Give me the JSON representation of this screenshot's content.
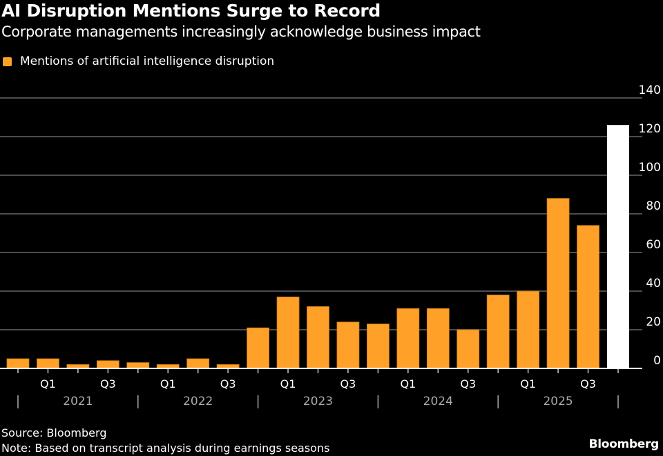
{
  "title": "AI Disruption Mentions Surge to Record",
  "subtitle": "Corporate managements increasingly acknowledge business impact",
  "source": "Source: Bloomberg",
  "note": "Note: Based on transcript analysis during earnings seasons",
  "logo": "Bloomberg",
  "colors": {
    "bar": "#ffa028",
    "highlight": "#ffffff",
    "grid": "#4d4d4d",
    "background": "#000000"
  },
  "chart_data": {
    "type": "bar",
    "title": "AI Disruption Mentions Surge to Record",
    "legend": [
      {
        "name": "Mentions of artificial intelligence disruption",
        "color": "#ffa028"
      }
    ],
    "legend_position": "top-left",
    "tick_labels": [
      "",
      "Q1",
      "",
      "Q3",
      "",
      "Q1",
      "",
      "Q3",
      "",
      "Q1",
      "",
      "Q3",
      "",
      "Q1",
      "",
      "Q3",
      "",
      "Q1",
      "",
      "Q3",
      ""
    ],
    "year_labels": [
      "2021",
      "2022",
      "2023",
      "2024",
      "2025"
    ],
    "series": [
      {
        "name": "Mentions of artificial intelligence disruption",
        "values": [
          5,
          5,
          2,
          4,
          3,
          2,
          5,
          2,
          21,
          37,
          32,
          24,
          23,
          31,
          31,
          20,
          38,
          40,
          88,
          74,
          126
        ],
        "highlight_last": true
      }
    ],
    "ylim": [
      0,
      140
    ],
    "yticks": [
      0,
      20,
      40,
      60,
      80,
      100,
      120,
      140
    ],
    "y_axis_side": "right",
    "grid": true
  }
}
